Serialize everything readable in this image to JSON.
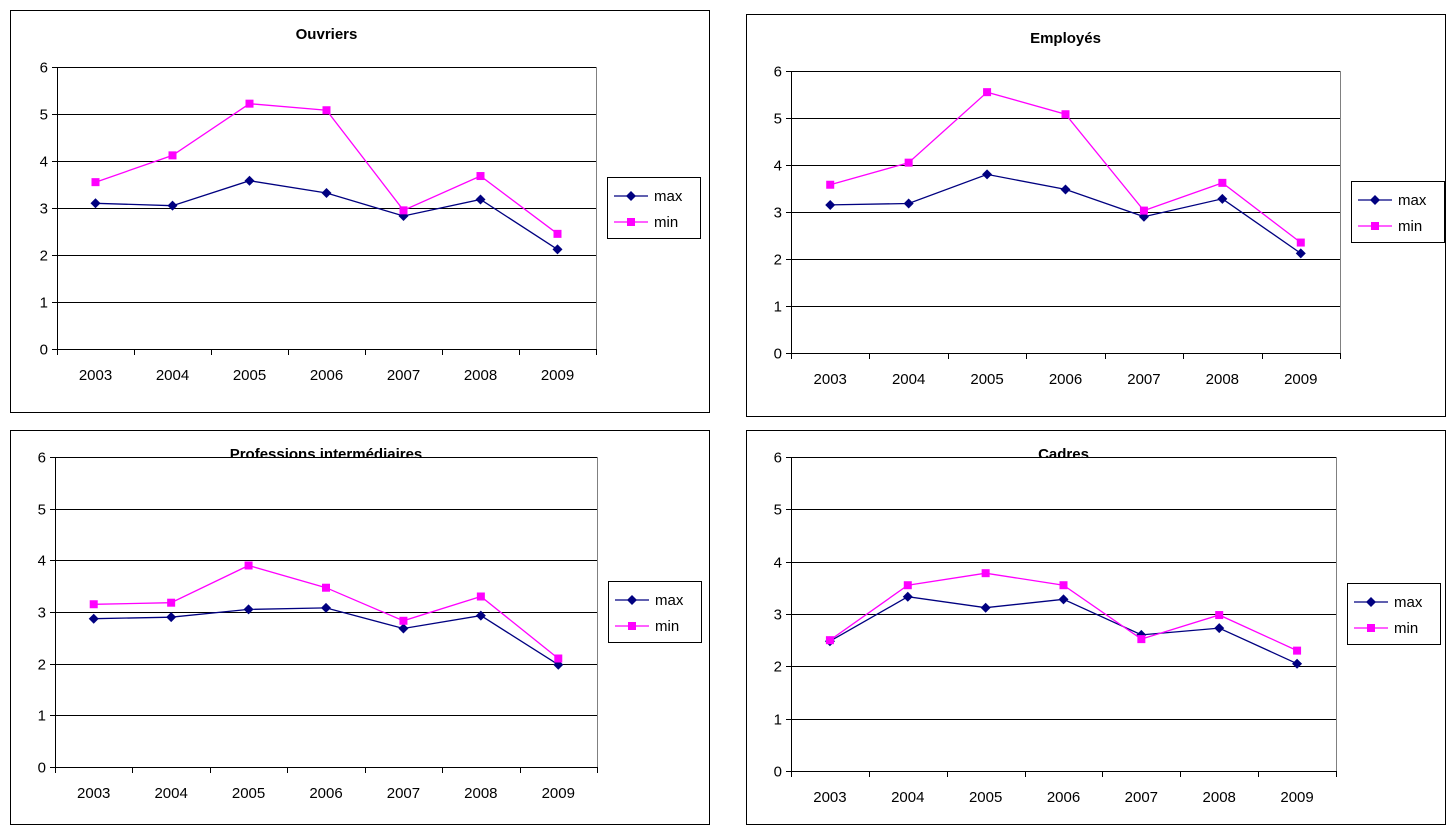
{
  "chart_data": [
    {
      "type": "line",
      "title": "Ouvriers",
      "categories": [
        "2003",
        "2004",
        "2005",
        "2006",
        "2007",
        "2008",
        "2009"
      ],
      "ylim": [
        0,
        6
      ],
      "yticks": [
        "0",
        "1",
        "2",
        "3",
        "4",
        "5",
        "6"
      ],
      "grid": true,
      "legend": "right",
      "series": [
        {
          "name": "max",
          "color": "#000080",
          "marker": "diamond",
          "values": [
            3.1,
            3.05,
            3.58,
            3.32,
            2.83,
            3.18,
            2.12
          ]
        },
        {
          "name": "min",
          "color": "#FF00FF",
          "marker": "square",
          "values": [
            3.55,
            4.12,
            5.22,
            5.08,
            2.95,
            3.68,
            2.45
          ]
        }
      ]
    },
    {
      "type": "line",
      "title": "Employés",
      "categories": [
        "2003",
        "2004",
        "2005",
        "2006",
        "2007",
        "2008",
        "2009"
      ],
      "ylim": [
        0,
        6
      ],
      "yticks": [
        "0",
        "1",
        "2",
        "3",
        "4",
        "5",
        "6"
      ],
      "grid": true,
      "legend": "right",
      "series": [
        {
          "name": "max",
          "color": "#000080",
          "marker": "diamond",
          "values": [
            3.15,
            3.18,
            3.8,
            3.48,
            2.9,
            3.28,
            2.12
          ]
        },
        {
          "name": "min",
          "color": "#FF00FF",
          "marker": "square",
          "values": [
            3.58,
            4.05,
            5.55,
            5.08,
            3.03,
            3.62,
            2.35
          ]
        }
      ]
    },
    {
      "type": "line",
      "title": "Professions intermédiaires",
      "categories": [
        "2003",
        "2004",
        "2005",
        "2006",
        "2007",
        "2008",
        "2009"
      ],
      "ylim": [
        0,
        6
      ],
      "yticks": [
        "0",
        "1",
        "2",
        "3",
        "4",
        "5",
        "6"
      ],
      "grid": true,
      "legend": "right",
      "series": [
        {
          "name": "max",
          "color": "#000080",
          "marker": "diamond",
          "values": [
            2.87,
            2.9,
            3.05,
            3.08,
            2.68,
            2.93,
            1.98
          ]
        },
        {
          "name": "min",
          "color": "#FF00FF",
          "marker": "square",
          "values": [
            3.15,
            3.18,
            3.9,
            3.47,
            2.83,
            3.3,
            2.1
          ]
        }
      ]
    },
    {
      "type": "line",
      "title": "Cadres",
      "categories": [
        "2003",
        "2004",
        "2005",
        "2006",
        "2007",
        "2008",
        "2009"
      ],
      "ylim": [
        0,
        6
      ],
      "yticks": [
        "0",
        "1",
        "2",
        "3",
        "4",
        "5",
        "6"
      ],
      "grid": true,
      "legend": "right",
      "series": [
        {
          "name": "max",
          "color": "#000080",
          "marker": "diamond",
          "values": [
            2.48,
            3.33,
            3.12,
            3.28,
            2.6,
            2.73,
            2.05
          ]
        },
        {
          "name": "min",
          "color": "#FF00FF",
          "marker": "square",
          "values": [
            2.5,
            3.55,
            3.78,
            3.55,
            2.52,
            2.98,
            2.3
          ]
        }
      ]
    }
  ]
}
